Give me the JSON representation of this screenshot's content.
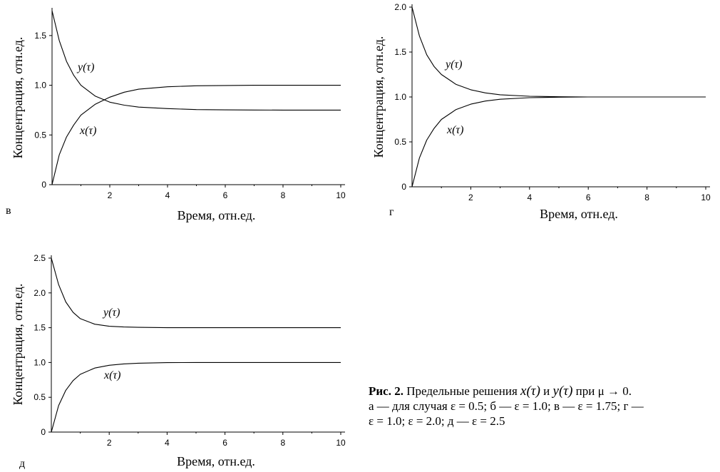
{
  "chart_data": [
    {
      "id": "v",
      "type": "line",
      "panel_label": "в",
      "xlabel": "Время, отн.ед.",
      "ylabel": "Концентрация, отн.ед.",
      "xlim": [
        0,
        10
      ],
      "ylim": [
        0,
        1.75
      ],
      "xticks": [
        2,
        4,
        6,
        8,
        10
      ],
      "yticks": [
        0,
        0.5,
        1.0,
        1.5
      ],
      "ytick_labels": [
        "0",
        "0.5",
        "1.0",
        "1.5"
      ],
      "series": [
        {
          "name": "y(τ)",
          "x": [
            0,
            0.25,
            0.5,
            0.75,
            1,
            1.5,
            2,
            2.5,
            3,
            4,
            5,
            6,
            7,
            8,
            10
          ],
          "values": [
            1.75,
            1.45,
            1.24,
            1.1,
            1.0,
            0.89,
            0.83,
            0.8,
            0.78,
            0.765,
            0.755,
            0.752,
            0.751,
            0.75,
            0.75
          ]
        },
        {
          "name": "x(τ)",
          "x": [
            0,
            0.25,
            0.5,
            0.75,
            1,
            1.5,
            2,
            2.5,
            3,
            4,
            5,
            6,
            7,
            8,
            10
          ],
          "values": [
            0,
            0.3,
            0.48,
            0.6,
            0.7,
            0.81,
            0.88,
            0.93,
            0.96,
            0.985,
            0.995,
            0.998,
            1.0,
            1.0,
            1.0
          ]
        }
      ]
    },
    {
      "id": "g",
      "type": "line",
      "panel_label": "г",
      "xlabel": "Время, отн.ед.",
      "ylabel": "Концентрация, отн.ед.",
      "xlim": [
        0,
        10
      ],
      "ylim": [
        0,
        2.0
      ],
      "xticks": [
        2,
        4,
        6,
        8,
        10
      ],
      "yticks": [
        0,
        0.5,
        1.0,
        1.5,
        2.0
      ],
      "ytick_labels": [
        "0",
        "0.5",
        "1.0",
        "1.5",
        "2.0"
      ],
      "series": [
        {
          "name": "y(τ)",
          "x": [
            0,
            0.25,
            0.5,
            0.75,
            1,
            1.5,
            2,
            2.5,
            3,
            4,
            5,
            6,
            7,
            8,
            10
          ],
          "values": [
            2.0,
            1.68,
            1.47,
            1.34,
            1.25,
            1.14,
            1.08,
            1.045,
            1.025,
            1.008,
            1.002,
            1.0,
            1.0,
            1.0,
            1.0
          ]
        },
        {
          "name": "x(τ)",
          "x": [
            0,
            0.25,
            0.5,
            0.75,
            1,
            1.5,
            2,
            2.5,
            3,
            4,
            5,
            6,
            7,
            8,
            10
          ],
          "values": [
            0,
            0.32,
            0.52,
            0.65,
            0.75,
            0.86,
            0.92,
            0.955,
            0.975,
            0.992,
            0.998,
            1.0,
            1.0,
            1.0,
            1.0
          ]
        }
      ]
    },
    {
      "id": "d",
      "type": "line",
      "panel_label": "д",
      "xlabel": "Время, отн.ед.",
      "ylabel": "Концентрация, отн.ед.",
      "xlim": [
        0,
        10
      ],
      "ylim": [
        0,
        2.5
      ],
      "xticks": [
        2,
        4,
        6,
        8,
        10
      ],
      "yticks": [
        0,
        0.5,
        1.0,
        1.5,
        2.0,
        2.5
      ],
      "ytick_labels": [
        "0",
        "0.5",
        "1.0",
        "1.5",
        "2.0",
        "2.5"
      ],
      "series": [
        {
          "name": "y(τ)",
          "x": [
            0,
            0.25,
            0.5,
            0.75,
            1,
            1.5,
            2,
            2.5,
            3,
            4,
            5,
            6,
            7,
            8,
            10
          ],
          "values": [
            2.5,
            2.12,
            1.87,
            1.72,
            1.63,
            1.55,
            1.52,
            1.51,
            1.505,
            1.5,
            1.5,
            1.5,
            1.5,
            1.5,
            1.5
          ]
        },
        {
          "name": "x(τ)",
          "x": [
            0,
            0.25,
            0.5,
            0.75,
            1,
            1.5,
            2,
            2.5,
            3,
            4,
            5,
            6,
            7,
            8,
            10
          ],
          "values": [
            0,
            0.38,
            0.6,
            0.74,
            0.83,
            0.92,
            0.96,
            0.98,
            0.99,
            0.998,
            1.0,
            1.0,
            1.0,
            1.0,
            1.0
          ]
        }
      ]
    }
  ],
  "caption": {
    "title": "Рис. 2.",
    "text_1": " Предельные решения ",
    "x_expr": "x(τ)",
    "and": " и ",
    "y_expr": "y(τ)",
    "text_2": " при ",
    "mu_expr": "μ → 0.",
    "line_2": "а — для случая ε = 0.5; б — ε = 1.0; в — ε = 1.75; г —",
    "line_3": "ε = 1.0; ε = 2.0; д — ε = 2.5"
  }
}
